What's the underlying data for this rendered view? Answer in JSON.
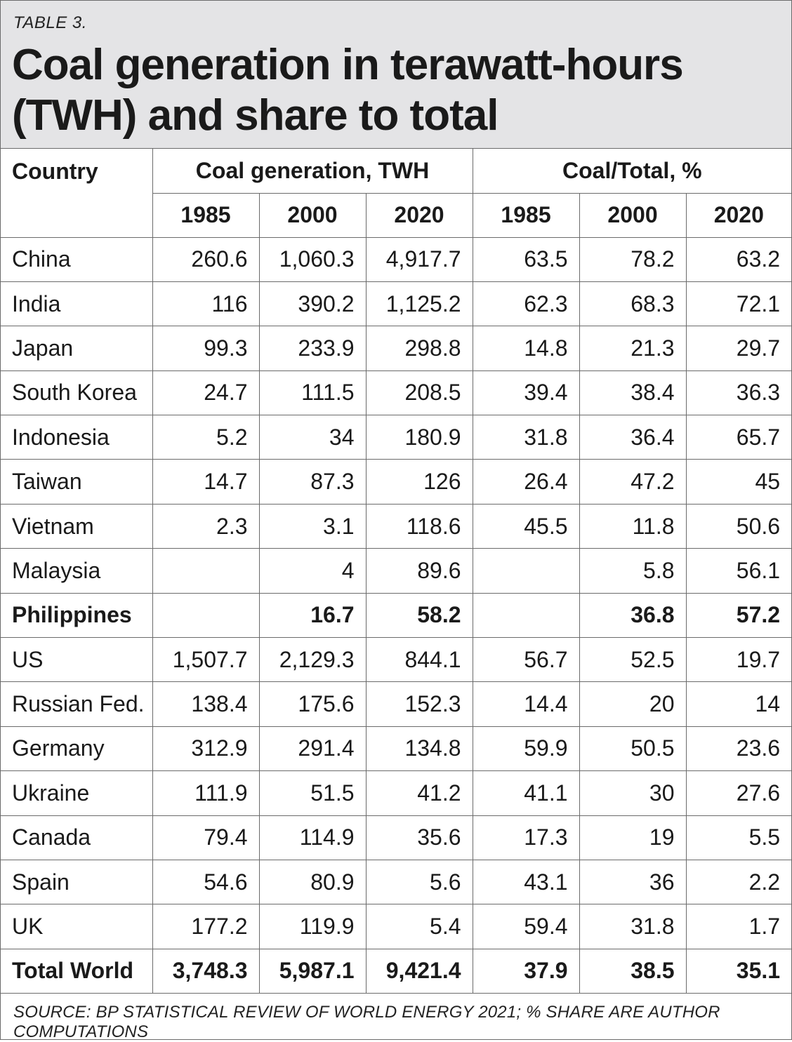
{
  "header": {
    "kicker": "TABLE 3.",
    "title": "Coal generation in terawatt-hours (TWH) and share to total"
  },
  "footer": {
    "source": "SOURCE: BP STATISTICAL REVIEW OF WORLD ENERGY 2021; % SHARE ARE AUTHOR COMPUTATIONS"
  },
  "chart_data": {
    "type": "table",
    "title": "Coal generation in terawatt-hours (TWH) and share to total",
    "column_header": "Country",
    "groups": [
      {
        "label": "Coal generation, TWH",
        "years": [
          "1985",
          "2000",
          "2020"
        ]
      },
      {
        "label": "Coal/Total, %",
        "years": [
          "1985",
          "2000",
          "2020"
        ]
      }
    ],
    "rows": [
      {
        "country": "China",
        "values": [
          "260.6",
          "1,060.3",
          "4,917.7",
          "63.5",
          "78.2",
          "63.2"
        ],
        "bold": false
      },
      {
        "country": "India",
        "values": [
          "116",
          "390.2",
          "1,125.2",
          "62.3",
          "68.3",
          "72.1"
        ],
        "bold": false
      },
      {
        "country": "Japan",
        "values": [
          "99.3",
          "233.9",
          "298.8",
          "14.8",
          "21.3",
          "29.7"
        ],
        "bold": false
      },
      {
        "country": "South Korea",
        "values": [
          "24.7",
          "111.5",
          "208.5",
          "39.4",
          "38.4",
          "36.3"
        ],
        "bold": false
      },
      {
        "country": "Indonesia",
        "values": [
          "5.2",
          "34",
          "180.9",
          "31.8",
          "36.4",
          "65.7"
        ],
        "bold": false
      },
      {
        "country": "Taiwan",
        "values": [
          "14.7",
          "87.3",
          "126",
          "26.4",
          "47.2",
          "45"
        ],
        "bold": false
      },
      {
        "country": "Vietnam",
        "values": [
          "2.3",
          "3.1",
          "118.6",
          "45.5",
          "11.8",
          "50.6"
        ],
        "bold": false
      },
      {
        "country": "Malaysia",
        "values": [
          "",
          "4",
          "89.6",
          "",
          "5.8",
          "56.1"
        ],
        "bold": false
      },
      {
        "country": "Philippines",
        "values": [
          "",
          "16.7",
          "58.2",
          "",
          "36.8",
          "57.2"
        ],
        "bold": true
      },
      {
        "country": "US",
        "values": [
          "1,507.7",
          "2,129.3",
          "844.1",
          "56.7",
          "52.5",
          "19.7"
        ],
        "bold": false
      },
      {
        "country": "Russian Fed.",
        "values": [
          "138.4",
          "175.6",
          "152.3",
          "14.4",
          "20",
          "14"
        ],
        "bold": false
      },
      {
        "country": "Germany",
        "values": [
          "312.9",
          "291.4",
          "134.8",
          "59.9",
          "50.5",
          "23.6"
        ],
        "bold": false
      },
      {
        "country": "Ukraine",
        "values": [
          "111.9",
          "51.5",
          "41.2",
          "41.1",
          "30",
          "27.6"
        ],
        "bold": false
      },
      {
        "country": "Canada",
        "values": [
          "79.4",
          "114.9",
          "35.6",
          "17.3",
          "19",
          "5.5"
        ],
        "bold": false
      },
      {
        "country": "Spain",
        "values": [
          "54.6",
          "80.9",
          "5.6",
          "43.1",
          "36",
          "2.2"
        ],
        "bold": false
      },
      {
        "country": "UK",
        "values": [
          "177.2",
          "119.9",
          "5.4",
          "59.4",
          "31.8",
          "1.7"
        ],
        "bold": false
      },
      {
        "country": "Total World",
        "values": [
          "3,748.3",
          "5,987.1",
          "9,421.4",
          "37.9",
          "38.5",
          "35.1"
        ],
        "bold": true
      }
    ]
  }
}
